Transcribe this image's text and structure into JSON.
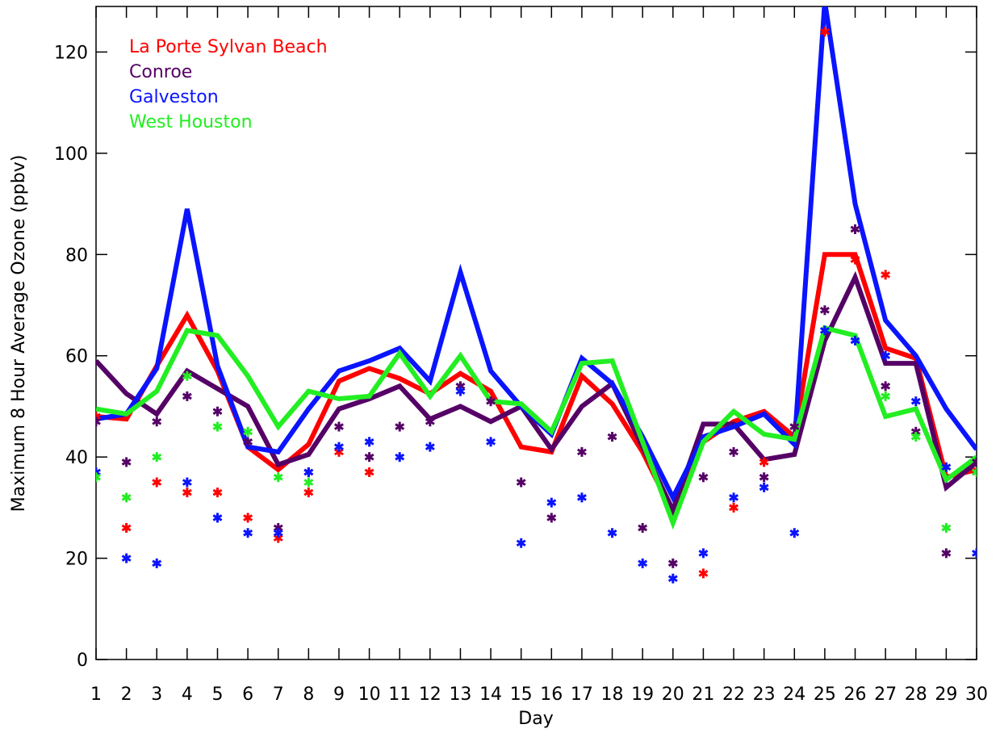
{
  "chart_data": {
    "type": "line",
    "xlabel": "Day",
    "ylabel": "Maximum 8 Hour Average Ozone (ppbv)",
    "x": [
      1,
      2,
      3,
      4,
      5,
      6,
      7,
      8,
      9,
      10,
      11,
      12,
      13,
      14,
      15,
      16,
      17,
      18,
      19,
      20,
      21,
      22,
      23,
      24,
      25,
      26,
      27,
      28,
      29,
      30
    ],
    "xlim": [
      1,
      30
    ],
    "xticks": [
      1,
      2,
      3,
      4,
      5,
      6,
      7,
      8,
      9,
      10,
      11,
      12,
      13,
      14,
      15,
      16,
      17,
      18,
      19,
      20,
      21,
      22,
      23,
      24,
      25,
      26,
      27,
      28,
      29,
      30
    ],
    "ylim": [
      0,
      129
    ],
    "yticks": [
      0,
      20,
      40,
      60,
      80,
      100,
      120
    ],
    "legend": "upper left",
    "series": [
      {
        "name": "La Porte Sylvan Beach",
        "color": "#ff0000",
        "values": [
          48,
          47.5,
          58,
          68,
          57,
          42,
          37.5,
          42.5,
          55,
          57.5,
          55.5,
          52.5,
          56.5,
          53,
          42,
          41,
          56,
          50.5,
          41,
          29,
          43,
          47,
          49,
          44,
          80,
          80,
          61.5,
          59.5,
          36,
          37.5
        ],
        "observed": [
          48,
          26,
          35,
          33,
          33,
          28,
          24,
          33,
          41,
          37,
          null,
          null,
          null,
          null,
          null,
          null,
          null,
          null,
          null,
          null,
          17,
          30,
          39,
          null,
          124,
          79,
          76,
          null,
          null,
          37
        ]
      },
      {
        "name": "Conroe",
        "color": "#550066",
        "values": [
          59,
          52.5,
          48.5,
          57,
          53.5,
          50,
          38.5,
          40.5,
          49.5,
          51.5,
          54,
          47.5,
          50,
          47,
          50,
          41.5,
          50,
          54.5,
          42,
          29.5,
          46.5,
          46.5,
          39.5,
          40.5,
          63,
          75.5,
          58.5,
          58.5,
          34,
          39
        ],
        "observed": [
          47,
          39,
          47,
          52,
          49,
          43,
          26,
          37,
          46,
          40,
          46,
          47,
          54,
          51,
          35,
          28,
          41,
          44,
          26,
          19,
          36,
          41,
          36,
          46,
          69,
          85,
          54,
          45,
          21,
          39
        ]
      },
      {
        "name": "Galveston",
        "color": "#0a14ff",
        "values": [
          47.5,
          48.5,
          57.5,
          89,
          58,
          42,
          41,
          49.5,
          57,
          59,
          61.5,
          55,
          76.5,
          57,
          50,
          44.5,
          59.5,
          54.5,
          44,
          32,
          44,
          46,
          48.5,
          42.5,
          130,
          90,
          67,
          60,
          49.5,
          41.5
        ],
        "observed": [
          37,
          20,
          19,
          35,
          28,
          25,
          25,
          37,
          42,
          43,
          40,
          42,
          53,
          43,
          23,
          31,
          32,
          25,
          19,
          16,
          21,
          32,
          34,
          25,
          65,
          63,
          60,
          51,
          38,
          21
        ]
      },
      {
        "name": "West Houston",
        "color": "#22ee22",
        "values": [
          49.5,
          48.5,
          53,
          65,
          64,
          56,
          46,
          53,
          51.5,
          52,
          60.5,
          52,
          60,
          51,
          50.5,
          45,
          58.5,
          59,
          43,
          27,
          43,
          49,
          44.5,
          43.5,
          65.5,
          64,
          48,
          49.5,
          35.5,
          40
        ],
        "observed": [
          36,
          32,
          40,
          56,
          46,
          45,
          36,
          35,
          null,
          null,
          null,
          null,
          null,
          null,
          null,
          null,
          null,
          null,
          null,
          null,
          null,
          null,
          null,
          null,
          null,
          null,
          52,
          44,
          26,
          37
        ]
      }
    ]
  }
}
